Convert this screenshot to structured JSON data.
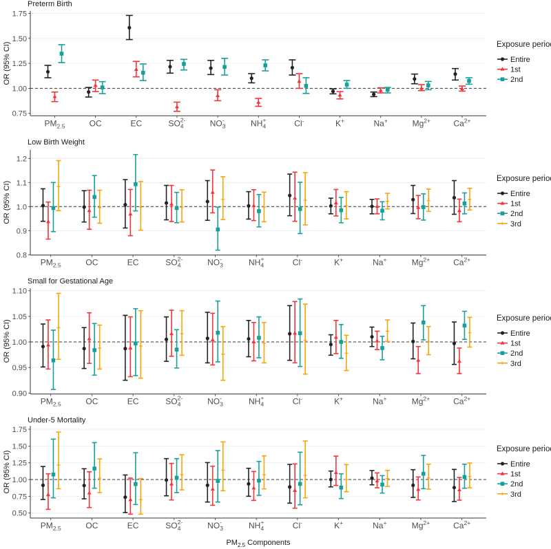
{
  "chart_data": {
    "type": "errorbar",
    "xlabel": {
      "base": "PM",
      "sub": "2.5",
      "rest": " Components"
    },
    "ylabel": "OR (95% CI)",
    "grid": true,
    "reference_line": 1.0,
    "legend": {
      "title": "Exposure period",
      "placement": "right"
    },
    "colors": {
      "Entire": "#222222",
      "1st": "#f5333b",
      "2nd": "#16a09a",
      "3rd": "#f9a40a"
    },
    "markers": {
      "Entire": "circle",
      "1st": "triangle",
      "2nd": "square",
      "3rd": "plus"
    },
    "categories": [
      {
        "base": "PM",
        "sub": "2.5"
      },
      {
        "base": "OC"
      },
      {
        "base": "EC"
      },
      {
        "base": "SO",
        "sub": "4",
        "sup": "2-"
      },
      {
        "base": "NO",
        "sub": "3",
        "sup": "-"
      },
      {
        "base": "NH",
        "sub": "4",
        "sup": "+"
      },
      {
        "base": "Cl",
        "sup": "-"
      },
      {
        "base": "K",
        "sup": "+"
      },
      {
        "base": "Na",
        "sup": "+"
      },
      {
        "base": "Mg",
        "sup": "2+"
      },
      {
        "base": "Ca",
        "sup": "2+"
      }
    ],
    "panels": [
      {
        "title": "Preterm Birth",
        "ylim": [
          0.75,
          1.75
        ],
        "yticks": [
          0.75,
          1.0,
          1.25,
          1.5,
          1.75
        ],
        "ytick_labels": [
          "0.75",
          "1.00",
          "1.25",
          "1.50",
          "1.75"
        ],
        "series": [
          {
            "name": "Entire",
            "values": [
              1.166,
              0.963,
              1.607,
              1.216,
              1.202,
              1.101,
              1.207,
              0.97,
              0.94,
              1.094,
              1.143
            ],
            "lower": [
              1.106,
              0.913,
              1.488,
              1.152,
              1.138,
              1.055,
              1.133,
              0.945,
              0.917,
              1.046,
              1.083
            ],
            "upper": [
              1.23,
              1.009,
              1.73,
              1.28,
              1.28,
              1.147,
              1.285,
              0.995,
              0.963,
              1.143,
              1.198
            ]
          },
          {
            "name": "1st",
            "values": [
              0.917,
              1.028,
              1.189,
              0.814,
              0.926,
              0.86,
              1.069,
              0.931,
              0.979,
              1.0,
              0.995
            ],
            "lower": [
              0.867,
              0.968,
              1.115,
              0.77,
              0.876,
              0.82,
              1.0,
              0.894,
              0.954,
              0.977,
              0.972
            ],
            "upper": [
              0.963,
              1.083,
              1.27,
              0.862,
              0.986,
              0.899,
              1.147,
              0.968,
              1.005,
              1.037,
              1.023
            ]
          },
          {
            "name": "2nd",
            "values": [
              1.347,
              1.009,
              1.156,
              1.244,
              1.214,
              1.23,
              1.025,
              1.037,
              0.986,
              1.03,
              1.074
            ],
            "lower": [
              1.258,
              0.947,
              1.078,
              1.184,
              1.133,
              1.175,
              0.949,
              1.0,
              0.954,
              0.986,
              1.041
            ],
            "upper": [
              1.437,
              1.067,
              1.244,
              1.29,
              1.3,
              1.285,
              1.106,
              1.078,
              1.009,
              1.069,
              1.106
            ]
          }
        ]
      },
      {
        "title": "Low Birth Weight",
        "ylim": [
          0.8,
          1.2
        ],
        "yticks": [
          0.8,
          0.9,
          1.0,
          1.1,
          1.2
        ],
        "ytick_labels": [
          "0.8",
          "0.9",
          "1.0",
          "1.1",
          "1.2"
        ],
        "series": [
          {
            "name": "Entire",
            "values": [
              1.004,
              0.998,
              1.008,
              1.015,
              1.021,
              1.003,
              1.046,
              1.003,
              1.001,
              1.029,
              1.037
            ],
            "lower": [
              0.939,
              0.936,
              0.911,
              0.945,
              0.943,
              0.948,
              0.962,
              0.97,
              0.97,
              0.971,
              0.968
            ],
            "upper": [
              1.074,
              1.066,
              1.112,
              1.088,
              1.108,
              1.062,
              1.135,
              1.035,
              1.03,
              1.088,
              1.108
            ]
          },
          {
            "name": "1st",
            "values": [
              0.937,
              0.983,
              0.969,
              1.01,
              1.059,
              1.004,
              1.035,
              1.015,
              1.001,
              0.996,
              0.983
            ],
            "lower": [
              0.865,
              0.906,
              0.879,
              0.938,
              0.974,
              0.942,
              0.939,
              0.961,
              0.97,
              0.95,
              0.937
            ],
            "upper": [
              1.019,
              1.068,
              1.071,
              1.088,
              1.152,
              1.07,
              1.143,
              1.071,
              1.032,
              1.046,
              1.031
            ]
          },
          {
            "name": "2nd",
            "values": [
              0.994,
              1.04,
              1.093,
              0.994,
              0.905,
              0.981,
              0.99,
              0.985,
              0.983,
              0.998,
              1.013
            ],
            "lower": [
              0.896,
              0.956,
              0.982,
              0.933,
              0.819,
              0.916,
              0.888,
              0.933,
              0.945,
              0.944,
              0.97
            ],
            "upper": [
              1.1,
              1.129,
              1.216,
              1.059,
              0.998,
              1.05,
              1.101,
              1.038,
              1.02,
              1.053,
              1.057
            ]
          },
          {
            "name": "3rd",
            "values": [
              1.083,
              0.996,
              0.998,
              0.998,
              1.03,
              0.998,
              1.027,
              1.004,
              1.022,
              1.025,
              1.03
            ],
            "lower": [
              0.983,
              0.931,
              0.902,
              0.936,
              0.946,
              0.937,
              0.924,
              0.949,
              0.99,
              0.98,
              0.986
            ],
            "upper": [
              1.191,
              1.068,
              1.104,
              1.07,
              1.124,
              1.06,
              1.141,
              1.062,
              1.055,
              1.073,
              1.076
            ]
          }
        ]
      },
      {
        "title": "Small for Gestational Age",
        "ylim": [
          0.9,
          1.1
        ],
        "yticks": [
          0.9,
          0.95,
          1.0,
          1.05,
          1.1
        ],
        "ytick_labels": [
          "0.90",
          "0.95",
          "1.00",
          "1.05",
          "1.10"
        ],
        "series": [
          {
            "name": "Entire",
            "values": [
              0.991,
              0.987,
              0.987,
              1.005,
              1.007,
              1.006,
              1.016,
              0.995,
              1.01,
              1.001,
              0.997
            ],
            "lower": [
              0.951,
              0.948,
              0.925,
              0.962,
              0.959,
              0.971,
              0.964,
              0.974,
              0.991,
              0.967,
              0.956
            ],
            "upper": [
              1.035,
              1.028,
              1.052,
              1.049,
              1.058,
              1.042,
              1.071,
              1.014,
              1.029,
              1.037,
              1.039
            ]
          },
          {
            "name": "1st",
            "values": [
              0.994,
              1.006,
              0.988,
              1.016,
              1.004,
              1.0,
              1.017,
              1.009,
              1.002,
              0.964,
              0.962
            ],
            "lower": [
              0.947,
              0.958,
              0.932,
              0.972,
              0.955,
              0.963,
              0.959,
              0.977,
              0.985,
              0.938,
              0.938
            ],
            "upper": [
              1.043,
              1.057,
              1.049,
              1.062,
              1.056,
              1.038,
              1.079,
              1.042,
              1.021,
              0.991,
              0.988
            ]
          },
          {
            "name": "2nd",
            "values": [
              0.964,
              0.984,
              0.997,
              0.985,
              1.018,
              1.008,
              1.017,
              1.0,
              0.988,
              1.038,
              1.032
            ],
            "lower": [
              0.907,
              0.935,
              0.934,
              0.949,
              0.961,
              0.969,
              0.952,
              0.968,
              0.965,
              1.004,
              1.005
            ],
            "upper": [
              1.023,
              1.036,
              1.065,
              1.024,
              1.08,
              1.049,
              1.084,
              1.034,
              1.011,
              1.071,
              1.06
            ]
          },
          {
            "name": "3rd",
            "values": [
              1.028,
              0.988,
              0.992,
              1.016,
              0.976,
              0.997,
              1.003,
              0.978,
              1.021,
              1.001,
              1.018
            ],
            "lower": [
              0.966,
              0.947,
              0.929,
              0.974,
              0.925,
              0.959,
              0.937,
              0.944,
              1.001,
              0.975,
              0.99
            ],
            "upper": [
              1.095,
              1.033,
              1.061,
              1.061,
              1.03,
              1.038,
              1.074,
              1.013,
              1.043,
              1.03,
              1.048
            ]
          }
        ]
      },
      {
        "title": "Under-5 Mortality",
        "ylim": [
          0.5,
          1.75
        ],
        "yticks": [
          0.5,
          0.75,
          1.0,
          1.25,
          1.5,
          1.75
        ],
        "ytick_labels": [
          "0.50",
          "0.75",
          "1.00",
          "1.25",
          "1.50",
          "1.75"
        ],
        "series": [
          {
            "name": "Entire",
            "values": [
              0.914,
              0.911,
              0.736,
              0.993,
              0.914,
              0.935,
              0.89,
              1.0,
              1.021,
              0.914,
              0.88
            ],
            "lower": [
              0.702,
              0.712,
              0.507,
              0.757,
              0.664,
              0.75,
              0.647,
              0.89,
              0.921,
              0.733,
              0.671
            ],
            "upper": [
              1.195,
              1.161,
              1.068,
              1.312,
              1.253,
              1.168,
              1.226,
              1.127,
              1.134,
              1.147,
              1.151
            ]
          },
          {
            "name": "1st",
            "values": [
              0.774,
              0.798,
              0.699,
              0.932,
              0.856,
              0.873,
              0.836,
              1.103,
              0.979,
              0.853,
              0.846
            ],
            "lower": [
              0.555,
              0.582,
              0.483,
              0.695,
              0.616,
              0.688,
              0.572,
              0.911,
              0.877,
              0.695,
              0.692
            ],
            "upper": [
              1.086,
              1.116,
              1.021,
              1.24,
              1.199,
              1.12,
              1.233,
              1.349,
              1.099,
              1.038,
              1.031
            ]
          },
          {
            "name": "2nd",
            "values": [
              1.075,
              1.164,
              0.932,
              1.027,
              0.979,
              0.983,
              0.935,
              0.88,
              0.925,
              1.086,
              1.038
            ],
            "lower": [
              0.726,
              0.87,
              0.627,
              0.805,
              0.664,
              0.764,
              0.623,
              0.716,
              0.798,
              0.863,
              0.87
            ],
            "upper": [
              1.603,
              1.551,
              1.4,
              1.312,
              1.432,
              1.271,
              1.408,
              1.086,
              1.058,
              1.36,
              1.229
            ]
          },
          {
            "name": "3rd",
            "values": [
              1.216,
              1.021,
              0.699,
              1.072,
              1.14,
              1.072,
              1.062,
              1.0,
              1.014,
              1.024,
              1.045
            ],
            "lower": [
              0.863,
              0.805,
              0.483,
              0.846,
              0.832,
              0.86,
              0.726,
              0.818,
              0.897,
              0.856,
              0.877
            ],
            "upper": [
              1.709,
              1.308,
              1.014,
              1.37,
              1.562,
              1.353,
              1.575,
              1.223,
              1.137,
              1.229,
              1.247
            ]
          }
        ]
      }
    ]
  }
}
